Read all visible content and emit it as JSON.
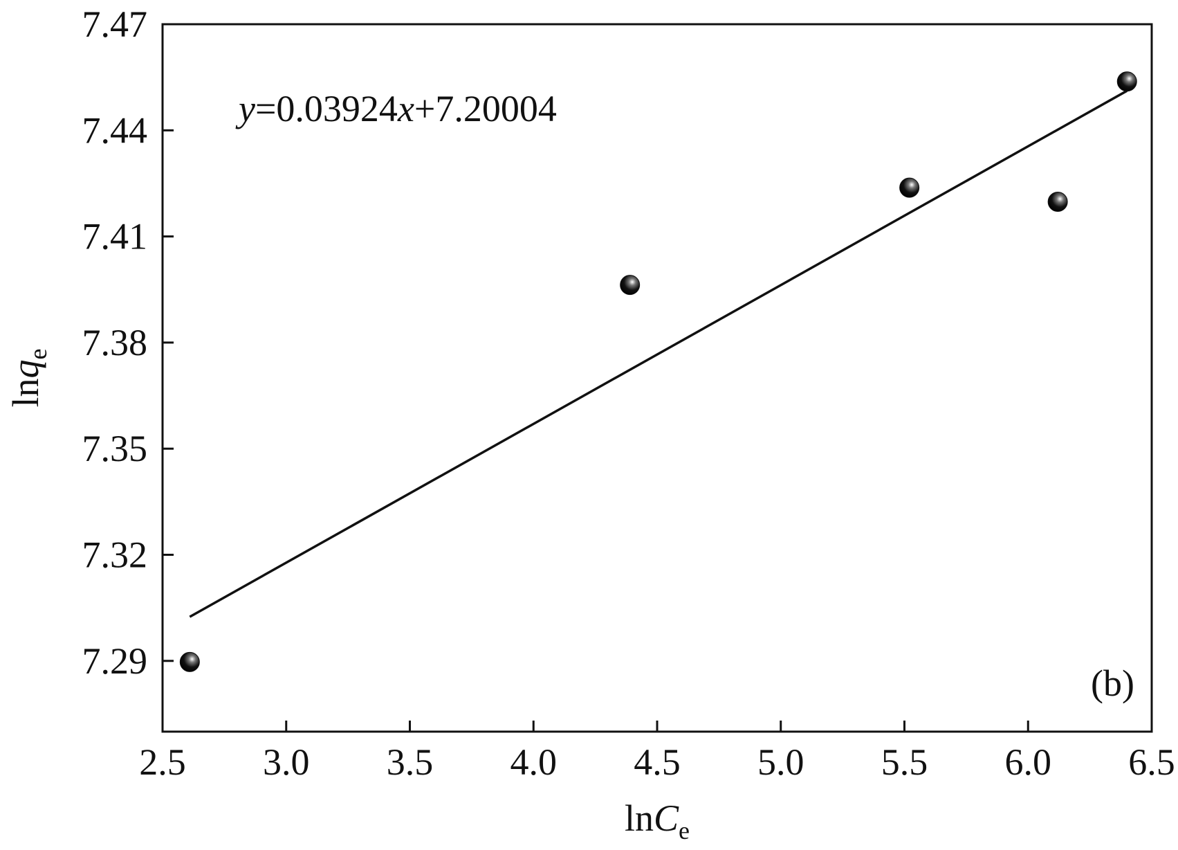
{
  "chart_data": {
    "type": "scatter",
    "annotation": [
      "y",
      "=0.03924",
      "x",
      "+7.20004"
    ],
    "panel_label": "(b)",
    "xlabel": [
      "ln",
      "C",
      "e"
    ],
    "ylabel": [
      "ln",
      "q",
      "e"
    ],
    "xlim": [
      2.5,
      6.5
    ],
    "ylim": [
      7.27,
      7.47
    ],
    "xticks": [
      2.5,
      {
        "value": 3,
        "label": "3.0"
      },
      3.5,
      {
        "value": 4,
        "label": "4.0"
      },
      4.5,
      {
        "value": 5,
        "label": "5.0"
      },
      5.5,
      {
        "value": 6,
        "label": "6.0"
      },
      6.5
    ],
    "yticks": [
      7.29,
      7.32,
      7.35,
      7.38,
      7.41,
      7.44,
      7.47
    ],
    "series": [
      {
        "color": "#111111",
        "x": [
          2.61,
          4.39,
          5.52,
          6.12,
          6.4
        ],
        "values": [
          7.2897,
          7.3963,
          7.4238,
          7.4198,
          7.4538
        ]
      },
      {
        "color": "#111111",
        "x": [
          2.61,
          6.4
        ],
        "values": [
          7.30246,
          7.45118
        ]
      }
    ]
  }
}
